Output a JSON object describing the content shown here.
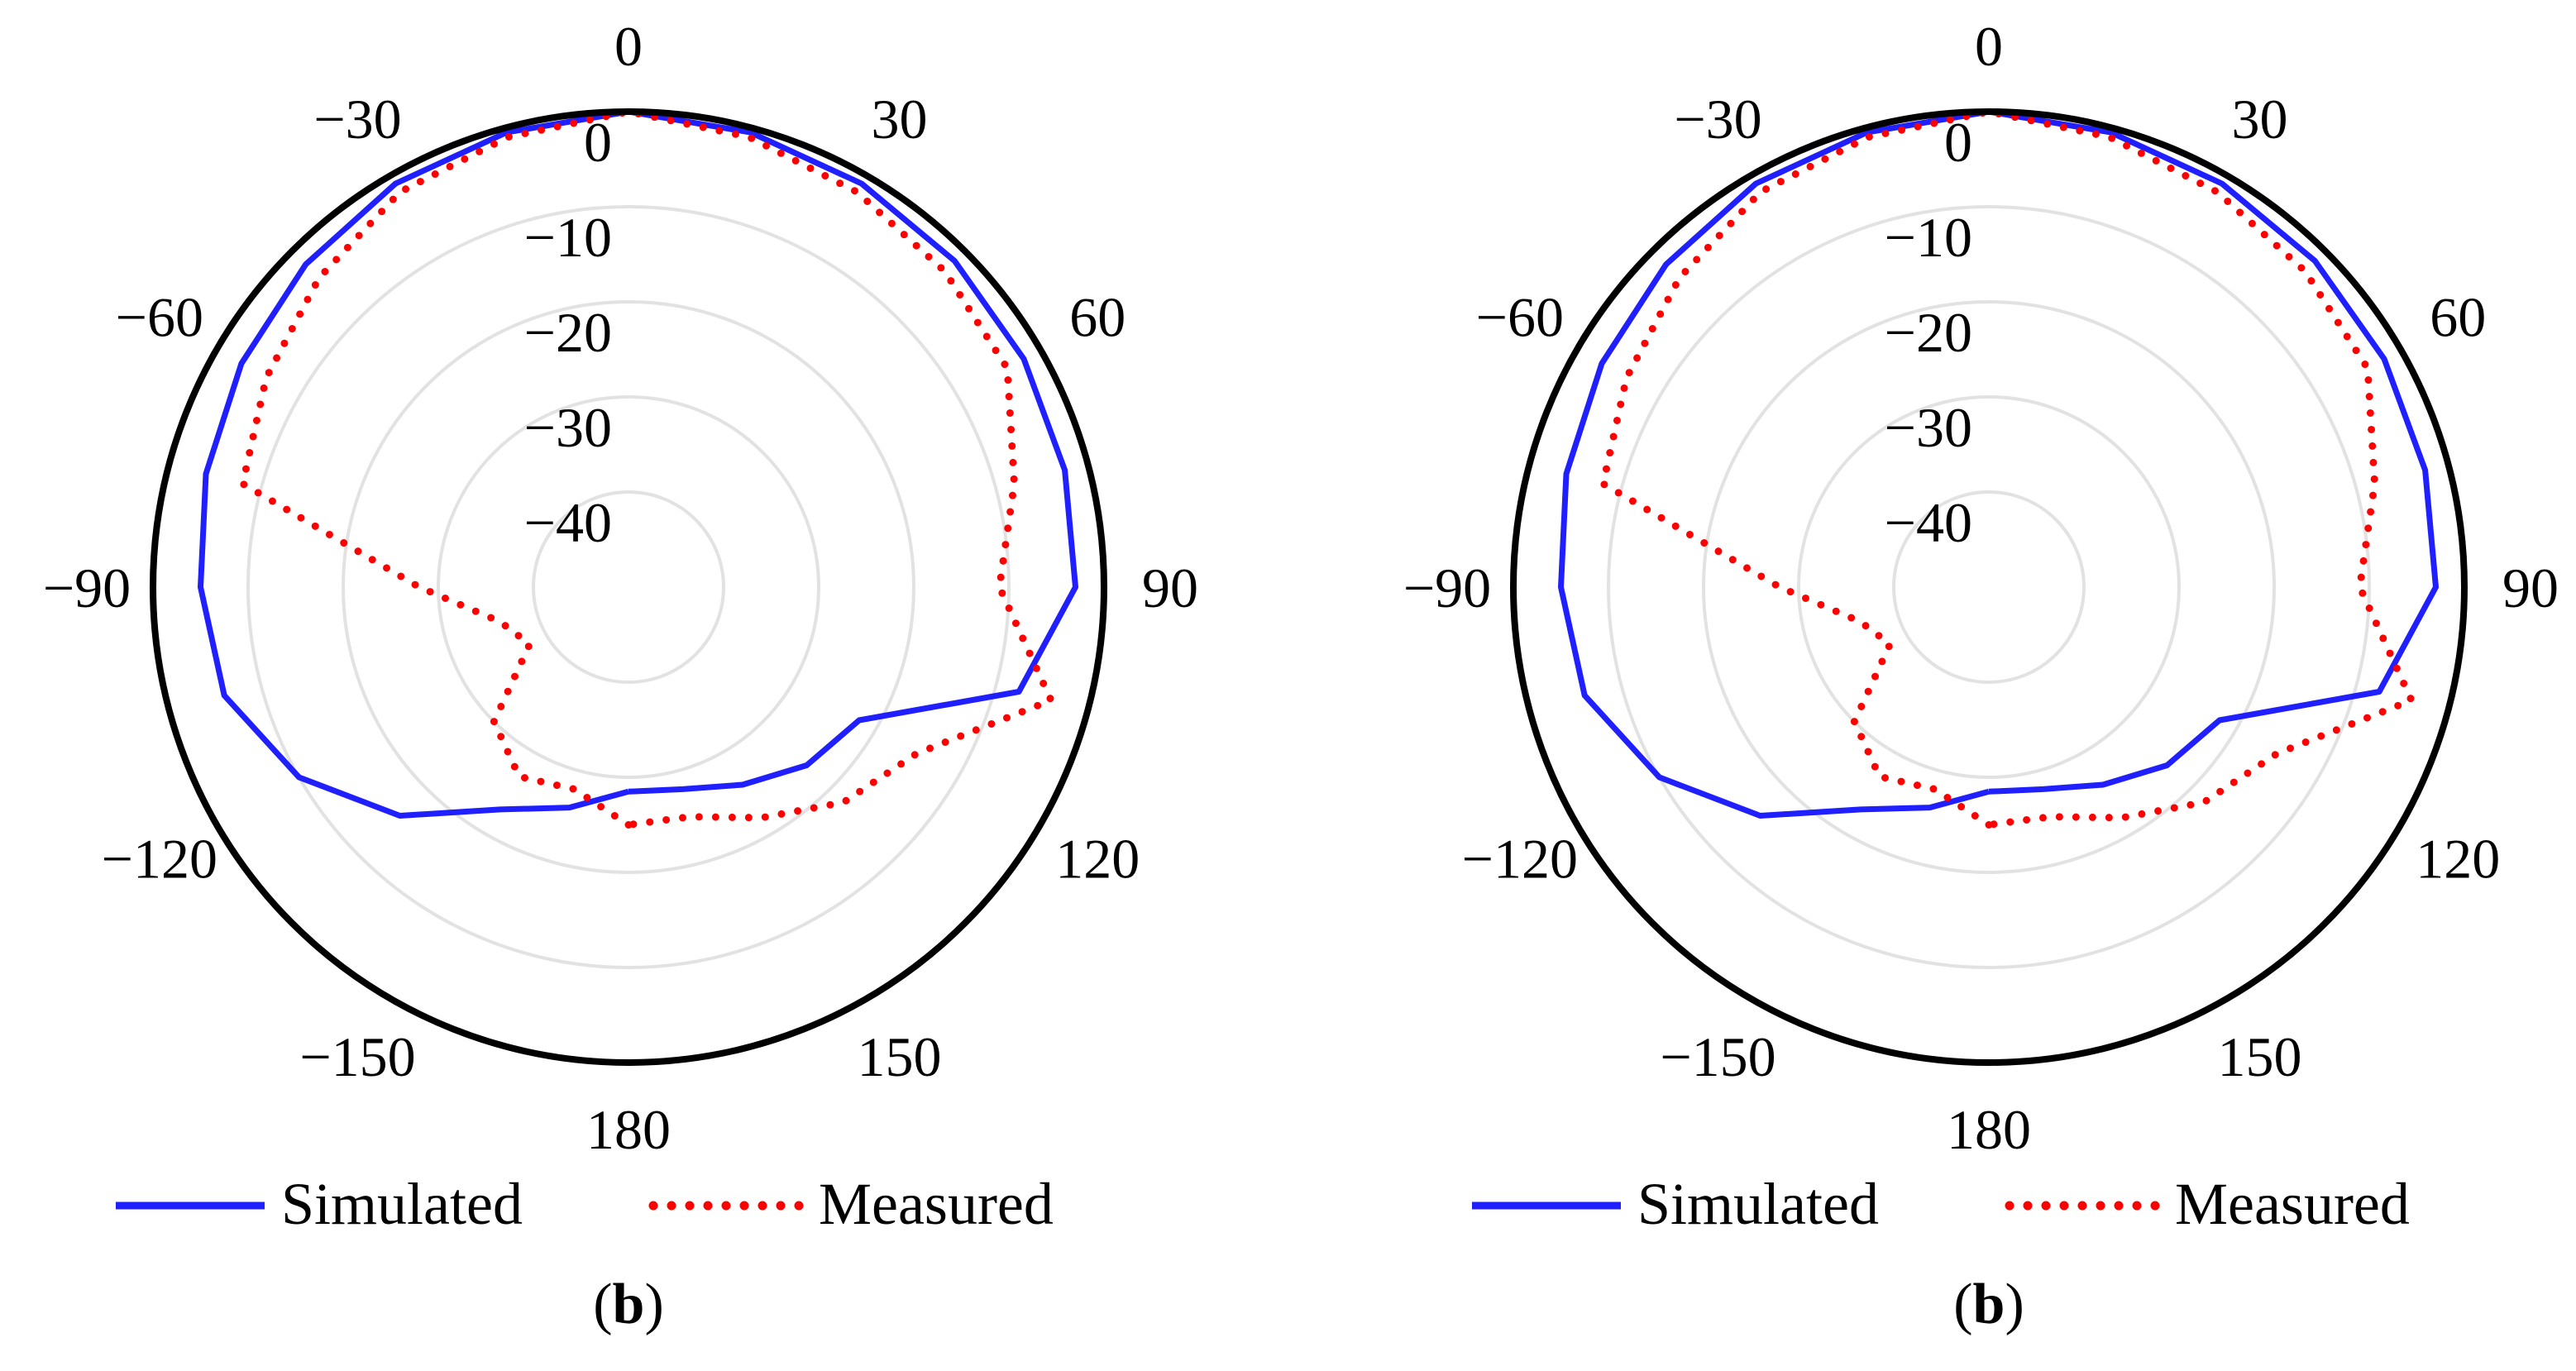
{
  "chart_data": [
    {
      "type": "polar-line",
      "panel_label": "b",
      "angle_ticks": [
        "0",
        "30",
        "60",
        "90",
        "120",
        "150",
        "180",
        "−150",
        "−120",
        "−90",
        "−60",
        "−30"
      ],
      "radial_ticks": [
        "0",
        "−10",
        "−20",
        "−30",
        "−40"
      ],
      "radial_range": [
        -50,
        0
      ],
      "grid": true,
      "legend": "bottom",
      "series": [
        {
          "name": "Simulated",
          "color": "#1f1fff",
          "style": "solid",
          "angles": [
            -180,
            -165,
            -150,
            -135,
            -120,
            -105,
            -90,
            -75,
            -60,
            -45,
            -30,
            -15,
            0,
            15,
            30,
            45,
            60,
            75,
            90,
            105,
            120,
            135,
            150,
            165,
            180
          ],
          "values": [
            -28.5,
            -26,
            -23,
            -16,
            -10,
            -6,
            -5,
            -4,
            -3,
            -2,
            -1,
            -0.5,
            0,
            -0.5,
            -1,
            -1.5,
            -2,
            -2.5,
            -3,
            -7.5,
            -22,
            -23.5,
            -26,
            -28,
            -28.5
          ]
        },
        {
          "name": "Measured",
          "color": "#ff0000",
          "style": "dotted",
          "angles": [
            -180,
            -165,
            -150,
            -135,
            -120,
            -105,
            -90,
            -75,
            -60,
            -45,
            -30,
            -15,
            0,
            15,
            30,
            45,
            60,
            75,
            90,
            105,
            120,
            135,
            150,
            165,
            180
          ],
          "values": [
            -25,
            -28,
            -27,
            -30,
            -38,
            -36,
            -28,
            -8,
            -6,
            -4,
            -2,
            -1,
            0,
            -1,
            -2,
            -3,
            -4,
            -8,
            -11,
            -4,
            -15,
            -18,
            -22,
            -25,
            -25
          ]
        }
      ]
    },
    {
      "type": "polar-line",
      "panel_label": "b",
      "angle_ticks": [
        "0",
        "30",
        "60",
        "90",
        "120",
        "150",
        "180",
        "−150",
        "−120",
        "−90",
        "−60",
        "−30"
      ],
      "radial_ticks": [
        "0",
        "−10",
        "−20",
        "−30",
        "−40"
      ],
      "radial_range": [
        -50,
        0
      ],
      "grid": true,
      "legend": "bottom",
      "series": [
        {
          "name": "Simulated",
          "color": "#1f1fff",
          "style": "solid",
          "angles": [
            -180,
            -165,
            -150,
            -135,
            -120,
            -105,
            -90,
            -75,
            -60,
            -45,
            -30,
            -15,
            0,
            15,
            30,
            45,
            60,
            75,
            90,
            105,
            120,
            135,
            150,
            165,
            180
          ],
          "values": [
            -28.5,
            -26,
            -23,
            -16,
            -10,
            -6,
            -5,
            -4,
            -3,
            -2,
            -1,
            -0.5,
            0,
            -0.5,
            -1,
            -1.5,
            -2,
            -2.5,
            -3,
            -7.5,
            -22,
            -23.5,
            -26,
            -28,
            -28.5
          ]
        },
        {
          "name": "Measured",
          "color": "#ff0000",
          "style": "dotted",
          "angles": [
            -180,
            -165,
            -150,
            -135,
            -120,
            -105,
            -90,
            -75,
            -60,
            -45,
            -30,
            -15,
            0,
            15,
            30,
            45,
            60,
            75,
            90,
            105,
            120,
            135,
            150,
            165,
            180
          ],
          "values": [
            -25,
            -28,
            -27,
            -30,
            -38,
            -36,
            -28,
            -8,
            -6,
            -4,
            -2,
            -1,
            0,
            -1,
            -2,
            -3,
            -4,
            -8,
            -11,
            -4,
            -15,
            -18,
            -22,
            -25,
            -25
          ]
        }
      ]
    }
  ]
}
